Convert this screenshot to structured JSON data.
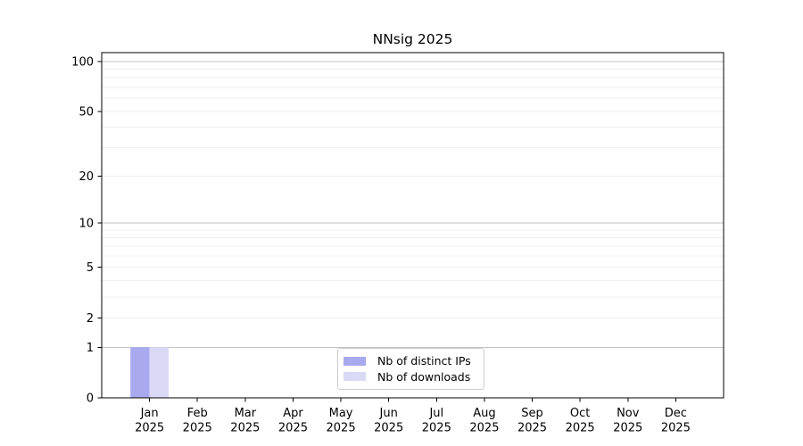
{
  "chart_data": {
    "type": "bar",
    "title": "NNsig 2025",
    "categories": [
      "Jan",
      "Feb",
      "Mar",
      "Apr",
      "May",
      "Jun",
      "Jul",
      "Aug",
      "Sep",
      "Oct",
      "Nov",
      "Dec"
    ],
    "category_year_label": "2025",
    "series": [
      {
        "name": "Nb of distinct IPs",
        "color": "#a9a9f0",
        "values": [
          1,
          0,
          0,
          0,
          0,
          0,
          0,
          0,
          0,
          0,
          0,
          0
        ]
      },
      {
        "name": "Nb of downloads",
        "color": "#dadaf6",
        "values": [
          1,
          0,
          0,
          0,
          0,
          0,
          0,
          0,
          0,
          0,
          0,
          0
        ]
      }
    ],
    "xlabel": "",
    "ylabel": "",
    "yscale": "log1p",
    "ylim": [
      0,
      113
    ],
    "yticks": [
      0,
      1,
      2,
      5,
      10,
      20,
      50,
      100
    ],
    "gridlines": {
      "major": [
        1,
        10,
        100
      ],
      "minor": [
        2,
        3,
        4,
        5,
        6,
        7,
        8,
        9,
        20,
        30,
        40,
        50,
        60,
        70,
        80,
        90
      ],
      "major_color": "#c2c2c2",
      "minor_color": "#efefef"
    },
    "axis_color": "#000000",
    "text_color": "#000000",
    "legend_position": "lower center",
    "grid": "on"
  }
}
